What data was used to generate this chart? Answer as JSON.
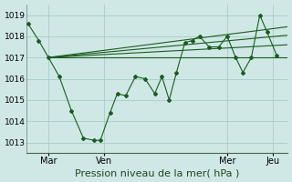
{
  "bg_color": "#cfe8e5",
  "grid_color": "#a8ccca",
  "line_color": "#1a5c20",
  "xlabel": "Pression niveau de la mer( hPa )",
  "ylabel_ticks": [
    1013,
    1014,
    1015,
    1016,
    1017,
    1018,
    1019
  ],
  "ylim": [
    1012.5,
    1019.5
  ],
  "xlim": [
    0.0,
    10.8
  ],
  "xtick_positions": [
    0.9,
    3.2,
    8.3,
    10.2
  ],
  "xtick_labels": [
    "Mar",
    "Ven",
    "Mer",
    "Jeu"
  ],
  "vline_positions": [
    0.9,
    3.2,
    8.3,
    10.2
  ],
  "main_x": [
    0.05,
    0.5,
    0.9,
    1.35,
    1.85,
    2.35,
    2.8,
    3.05,
    3.45,
    3.75,
    4.1,
    4.5,
    4.9,
    5.3,
    5.6,
    5.9,
    6.2,
    6.55,
    6.85,
    7.15,
    7.55,
    7.95,
    8.3,
    8.65,
    8.95,
    9.3,
    9.65,
    9.95,
    10.35
  ],
  "main_y": [
    1018.6,
    1017.8,
    1017.0,
    1016.1,
    1014.5,
    1013.2,
    1013.1,
    1013.1,
    1014.4,
    1015.3,
    1015.2,
    1016.1,
    1016.0,
    1015.3,
    1016.1,
    1015.0,
    1016.3,
    1017.7,
    1017.8,
    1018.0,
    1017.5,
    1017.5,
    1018.0,
    1017.0,
    1016.3,
    1017.0,
    1019.0,
    1018.2,
    1017.1
  ],
  "trend_lines": [
    {
      "x": [
        0.9,
        10.8
      ],
      "y": [
        1017.0,
        1017.0
      ]
    },
    {
      "x": [
        0.9,
        10.8
      ],
      "y": [
        1017.0,
        1017.6
      ]
    },
    {
      "x": [
        0.9,
        10.8
      ],
      "y": [
        1017.0,
        1018.05
      ]
    },
    {
      "x": [
        0.9,
        10.8
      ],
      "y": [
        1017.0,
        1018.45
      ]
    }
  ]
}
